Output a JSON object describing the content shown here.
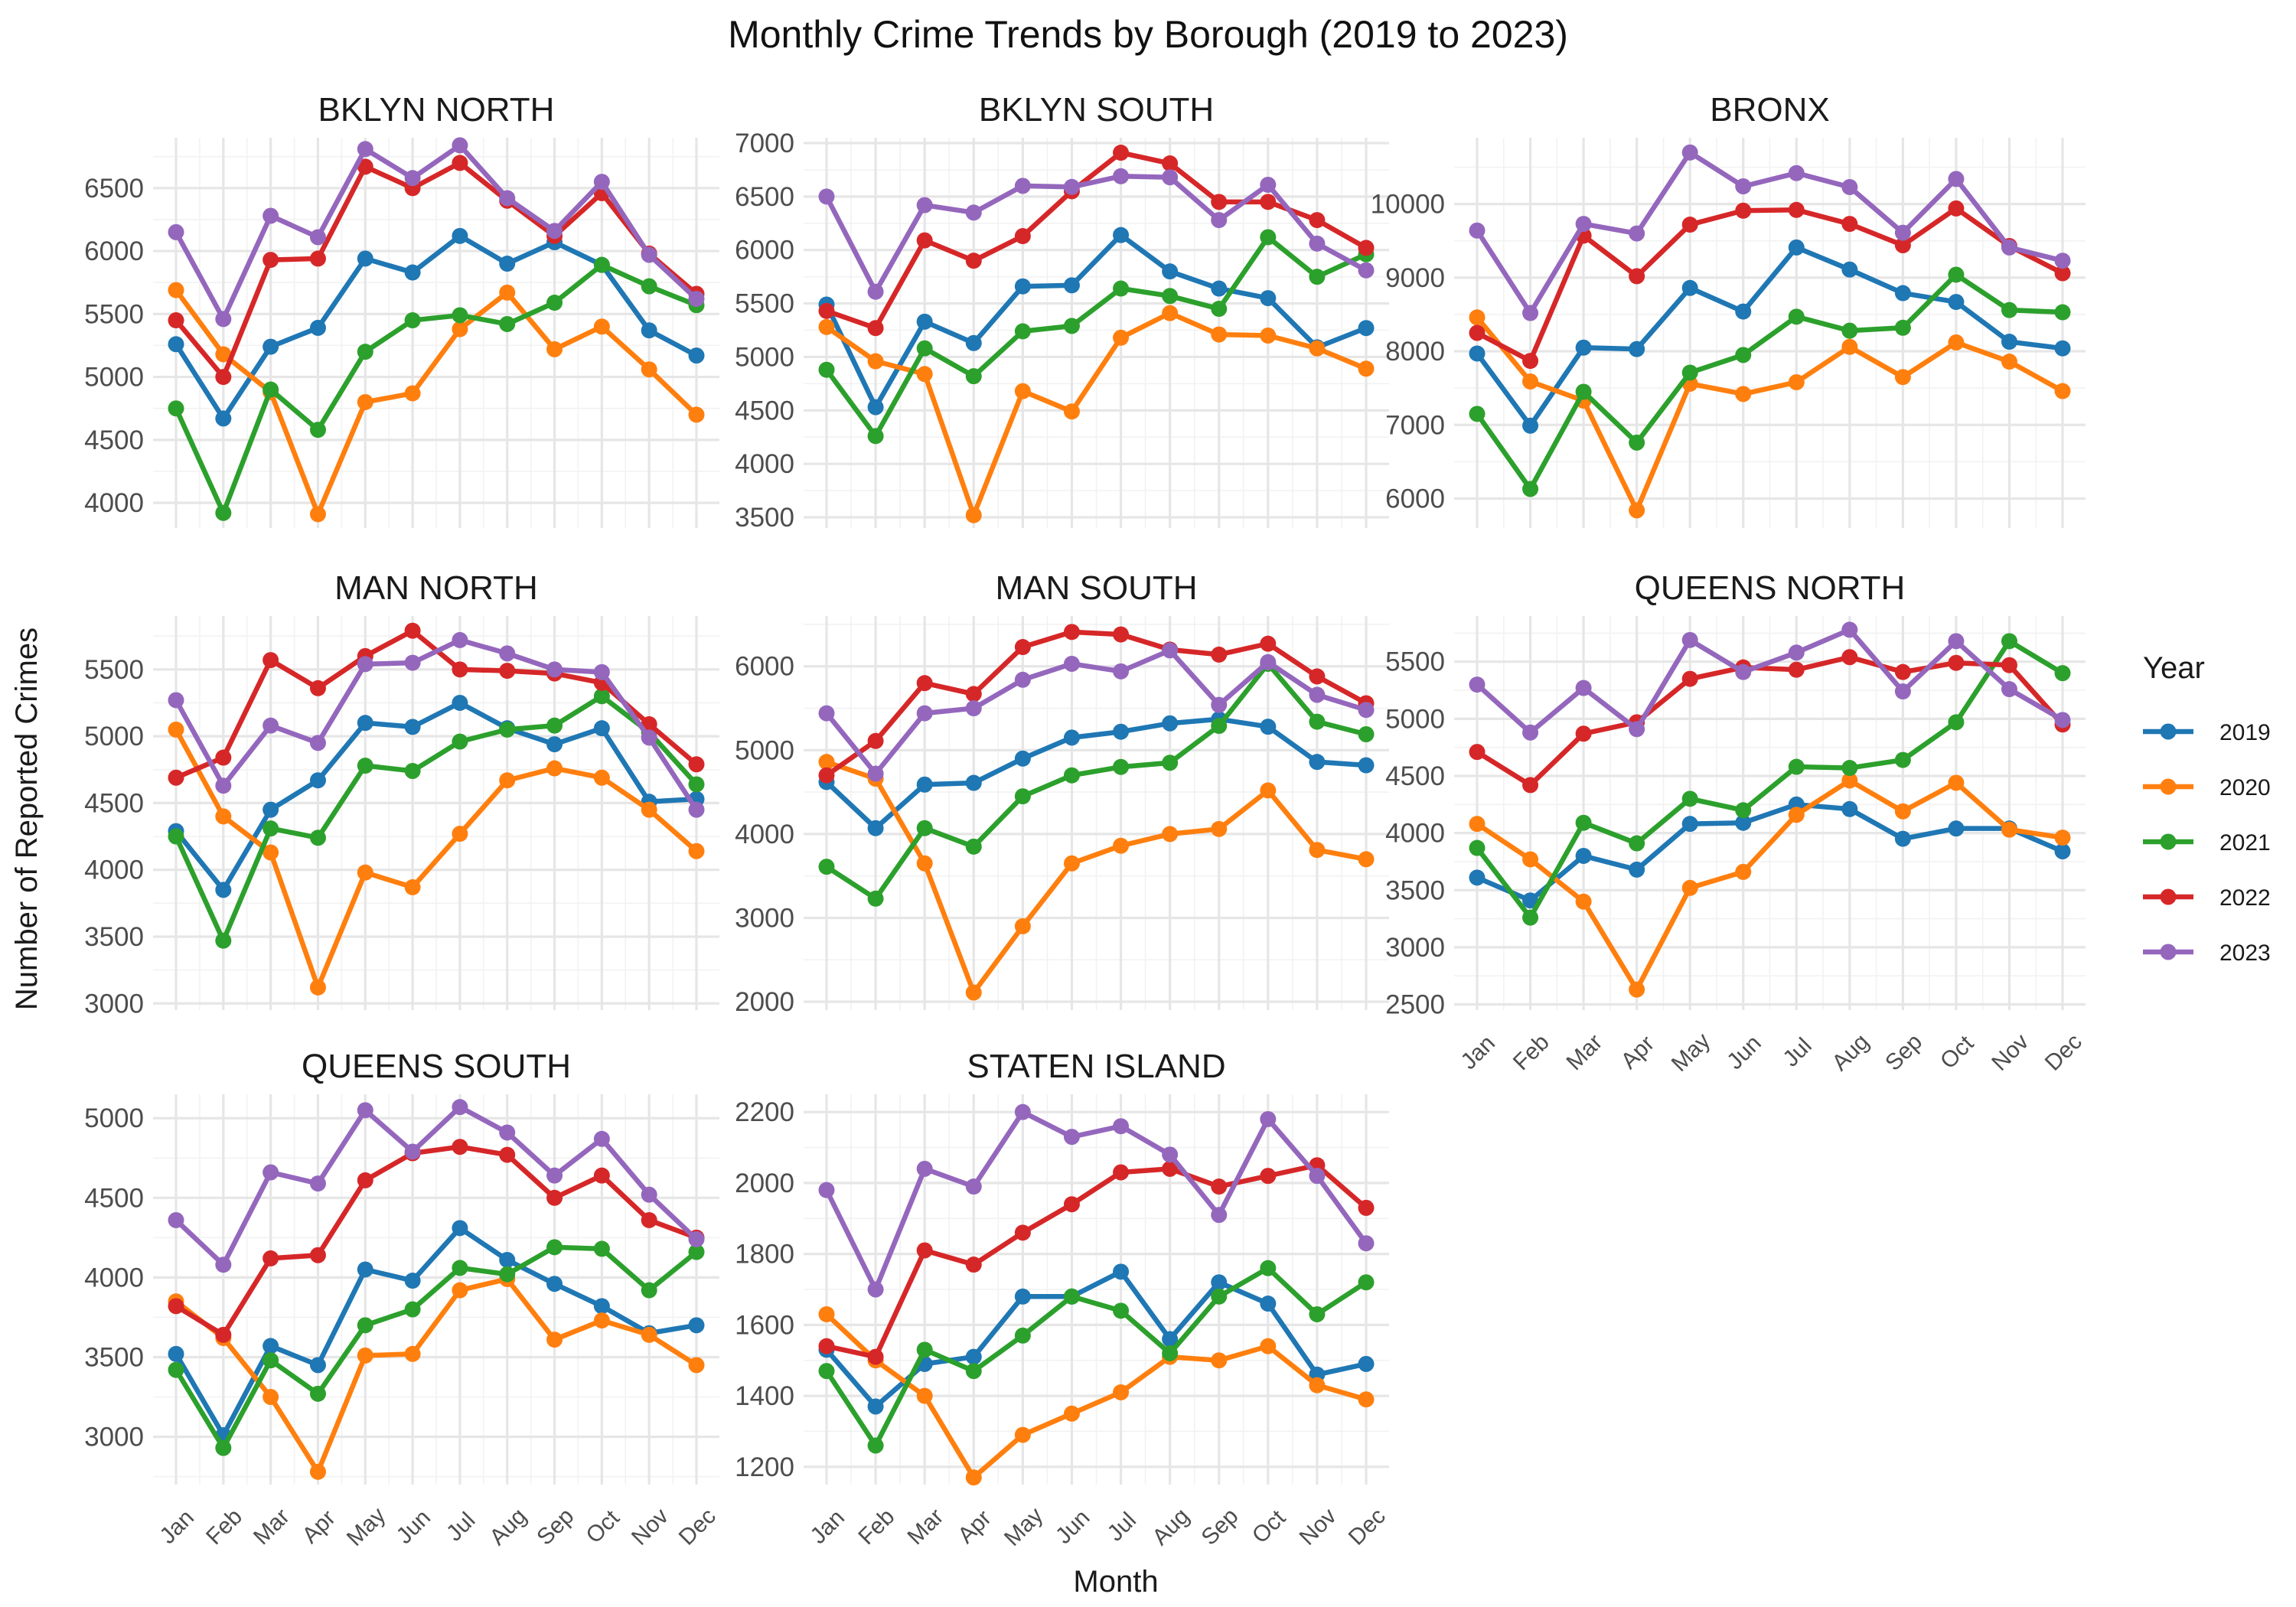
{
  "chart_data": {
    "type": "line",
    "title": "Monthly Crime Trends by Borough (2019 to 2023)",
    "xlabel": "Month",
    "ylabel": "Number of Reported Crimes",
    "legend_title": "Year",
    "legend_position": "right",
    "grid": true,
    "x": [
      "Jan",
      "Feb",
      "Mar",
      "Apr",
      "May",
      "Jun",
      "Jul",
      "Aug",
      "Sep",
      "Oct",
      "Nov",
      "Dec"
    ],
    "series_names": [
      "2019",
      "2020",
      "2021",
      "2022",
      "2023"
    ],
    "colors": {
      "2019": "#1f77b4",
      "2020": "#ff7f0e",
      "2021": "#2ca02c",
      "2022": "#d62728",
      "2023": "#9467bd"
    },
    "panels": [
      {
        "name": "BKLYN NORTH",
        "ylim": [
          3800,
          6900
        ],
        "yticks": [
          4000,
          4500,
          5000,
          5500,
          6000,
          6500
        ],
        "series": [
          {
            "name": "2019",
            "values": [
              5260,
              4670,
              5240,
              5390,
              5940,
              5830,
              6120,
              5900,
              6070,
              5890,
              5370,
              5170
            ]
          },
          {
            "name": "2020",
            "values": [
              5690,
              5180,
              4880,
              3910,
              4800,
              4870,
              5380,
              5670,
              5220,
              5400,
              5060,
              4700
            ]
          },
          {
            "name": "2021",
            "values": [
              4750,
              3920,
              4900,
              4580,
              5200,
              5450,
              5490,
              5420,
              5590,
              5890,
              5720,
              5570
            ]
          },
          {
            "name": "2022",
            "values": [
              5450,
              5000,
              5930,
              5940,
              6670,
              6500,
              6700,
              6400,
              6120,
              6460,
              5980,
              5660
            ]
          },
          {
            "name": "2023",
            "values": [
              6150,
              5460,
              6280,
              6110,
              6810,
              6580,
              6840,
              6420,
              6160,
              6550,
              5970,
              5620
            ]
          }
        ]
      },
      {
        "name": "BKLYN SOUTH",
        "ylim": [
          3400,
          7050
        ],
        "yticks": [
          3500,
          4000,
          4500,
          5000,
          5500,
          6000,
          6500,
          7000
        ],
        "series": [
          {
            "name": "2019",
            "values": [
              5490,
              4530,
              5330,
              5130,
              5660,
              5670,
              6140,
              5800,
              5640,
              5550,
              5090,
              5270
            ]
          },
          {
            "name": "2020",
            "values": [
              5280,
              4960,
              4840,
              3520,
              4680,
              4490,
              5180,
              5410,
              5210,
              5200,
              5080,
              4890
            ]
          },
          {
            "name": "2021",
            "values": [
              4880,
              4260,
              5080,
              4820,
              5240,
              5290,
              5640,
              5570,
              5450,
              6120,
              5750,
              5960
            ]
          },
          {
            "name": "2022",
            "values": [
              5430,
              5270,
              6090,
              5900,
              6130,
              6550,
              6910,
              6810,
              6450,
              6450,
              6280,
              6020
            ]
          },
          {
            "name": "2023",
            "values": [
              6500,
              5610,
              6420,
              6350,
              6600,
              6590,
              6690,
              6680,
              6280,
              6610,
              6060,
              5810
            ]
          }
        ]
      },
      {
        "name": "BRONX",
        "ylim": [
          5600,
          10900
        ],
        "yticks": [
          6000,
          7000,
          8000,
          9000,
          10000
        ],
        "series": [
          {
            "name": "2019",
            "values": [
              7970,
              6990,
              8050,
              8030,
              8860,
              8540,
              9410,
              9110,
              8790,
              8670,
              8130,
              8040
            ]
          },
          {
            "name": "2020",
            "values": [
              8460,
              7590,
              7330,
              5840,
              7560,
              7420,
              7580,
              8060,
              7650,
              8120,
              7860,
              7460
            ]
          },
          {
            "name": "2021",
            "values": [
              7150,
              6130,
              7450,
              6760,
              7710,
              7950,
              8470,
              8280,
              8320,
              9040,
              8560,
              8530
            ]
          },
          {
            "name": "2022",
            "values": [
              8250,
              7870,
              9570,
              9020,
              9720,
              9910,
              9920,
              9730,
              9440,
              9940,
              9430,
              9060
            ]
          },
          {
            "name": "2023",
            "values": [
              9640,
              8520,
              9730,
              9600,
              10700,
              10240,
              10420,
              10230,
              9610,
              10340,
              9410,
              9230
            ]
          }
        ]
      },
      {
        "name": "MAN NORTH",
        "ylim": [
          2950,
          5900
        ],
        "yticks": [
          3000,
          3500,
          4000,
          4500,
          5000,
          5500
        ],
        "series": [
          {
            "name": "2019",
            "values": [
              4290,
              3850,
              4450,
              4670,
              5100,
              5070,
              5250,
              5060,
              4940,
              5060,
              4510,
              4530
            ]
          },
          {
            "name": "2020",
            "values": [
              5050,
              4400,
              4130,
              3120,
              3980,
              3870,
              4270,
              4670,
              4760,
              4690,
              4450,
              4140
            ]
          },
          {
            "name": "2021",
            "values": [
              4250,
              3470,
              4310,
              4240,
              4780,
              4740,
              4960,
              5050,
              5080,
              5300,
              5030,
              4640
            ]
          },
          {
            "name": "2022",
            "values": [
              4690,
              4840,
              5570,
              5360,
              5600,
              5790,
              5500,
              5490,
              5470,
              5400,
              5090,
              4790
            ]
          },
          {
            "name": "2023",
            "values": [
              5270,
              4630,
              5080,
              4950,
              5540,
              5550,
              5720,
              5620,
              5500,
              5480,
              4990,
              4450
            ]
          }
        ]
      },
      {
        "name": "MAN SOUTH",
        "ylim": [
          1900,
          6600
        ],
        "yticks": [
          2000,
          3000,
          4000,
          5000,
          6000
        ],
        "series": [
          {
            "name": "2019",
            "values": [
              4620,
              4070,
              4590,
              4610,
              4900,
              5150,
              5220,
              5320,
              5370,
              5280,
              4860,
              4820
            ]
          },
          {
            "name": "2020",
            "values": [
              4860,
              4660,
              3650,
              2110,
              2900,
              3650,
              3860,
              4000,
              4060,
              4520,
              3810,
              3700
            ]
          },
          {
            "name": "2021",
            "values": [
              3610,
              3230,
              4070,
              3850,
              4450,
              4700,
              4800,
              4850,
              5290,
              6030,
              5340,
              5190
            ]
          },
          {
            "name": "2022",
            "values": [
              4700,
              5110,
              5800,
              5670,
              6230,
              6410,
              6380,
              6200,
              6140,
              6270,
              5880,
              5560
            ]
          },
          {
            "name": "2023",
            "values": [
              5440,
              4720,
              5440,
              5500,
              5840,
              6030,
              5940,
              6190,
              5540,
              6050,
              5660,
              5480
            ]
          }
        ]
      },
      {
        "name": "QUEENS NORTH",
        "ylim": [
          2450,
          5900
        ],
        "yticks": [
          2500,
          3000,
          3500,
          4000,
          4500,
          5000,
          5500
        ],
        "series": [
          {
            "name": "2019",
            "values": [
              3610,
              3410,
              3800,
              3680,
              4080,
              4090,
              4250,
              4210,
              3950,
              4040,
              4040,
              3840
            ]
          },
          {
            "name": "2020",
            "values": [
              4080,
              3770,
              3400,
              2630,
              3520,
              3660,
              4160,
              4460,
              4190,
              4440,
              4030,
              3960
            ]
          },
          {
            "name": "2021",
            "values": [
              3870,
              3260,
              4090,
              3910,
              4300,
              4200,
              4580,
              4570,
              4640,
              4970,
              5680,
              5400
            ]
          },
          {
            "name": "2022",
            "values": [
              4710,
              4420,
              4870,
              4970,
              5350,
              5450,
              5430,
              5540,
              5410,
              5490,
              5470,
              4950
            ]
          },
          {
            "name": "2023",
            "values": [
              5300,
              4880,
              5270,
              4910,
              5690,
              5410,
              5580,
              5780,
              5240,
              5680,
              5260,
              4990
            ]
          }
        ]
      },
      {
        "name": "QUEENS SOUTH",
        "ylim": [
          2700,
          5150
        ],
        "yticks": [
          3000,
          3500,
          4000,
          4500,
          5000
        ],
        "series": [
          {
            "name": "2019",
            "values": [
              3520,
              3010,
              3570,
              3450,
              4050,
              3980,
              4310,
              4110,
              3960,
              3820,
              3650,
              3700
            ]
          },
          {
            "name": "2020",
            "values": [
              3850,
              3620,
              3250,
              2780,
              3510,
              3520,
              3920,
              3990,
              3610,
              3730,
              3640,
              3450
            ]
          },
          {
            "name": "2021",
            "values": [
              3420,
              2930,
              3480,
              3270,
              3700,
              3800,
              4060,
              4020,
              4190,
              4180,
              3920,
              4160
            ]
          },
          {
            "name": "2022",
            "values": [
              3820,
              3640,
              4120,
              4140,
              4610,
              4780,
              4820,
              4770,
              4500,
              4640,
              4360,
              4250
            ]
          },
          {
            "name": "2023",
            "values": [
              4360,
              4080,
              4660,
              4590,
              5050,
              4790,
              5070,
              4910,
              4640,
              4870,
              4520,
              4240
            ]
          }
        ]
      },
      {
        "name": "STATEN ISLAND",
        "ylim": [
          1150,
          2250
        ],
        "yticks": [
          1200,
          1400,
          1600,
          1800,
          2000,
          2200
        ],
        "series": [
          {
            "name": "2019",
            "values": [
              1530,
              1370,
              1490,
              1510,
              1680,
              1680,
              1750,
              1560,
              1720,
              1660,
              1460,
              1490
            ]
          },
          {
            "name": "2020",
            "values": [
              1630,
              1500,
              1400,
              1170,
              1290,
              1350,
              1410,
              1510,
              1500,
              1540,
              1430,
              1390
            ]
          },
          {
            "name": "2021",
            "values": [
              1470,
              1260,
              1530,
              1470,
              1570,
              1680,
              1640,
              1520,
              1680,
              1760,
              1630,
              1720
            ]
          },
          {
            "name": "2022",
            "values": [
              1540,
              1510,
              1810,
              1770,
              1860,
              1940,
              2030,
              2040,
              1990,
              2020,
              2050,
              1930
            ]
          },
          {
            "name": "2023",
            "values": [
              1980,
              1700,
              2040,
              1990,
              2200,
              2130,
              2160,
              2080,
              1910,
              2180,
              2020,
              1830
            ]
          }
        ]
      }
    ]
  }
}
